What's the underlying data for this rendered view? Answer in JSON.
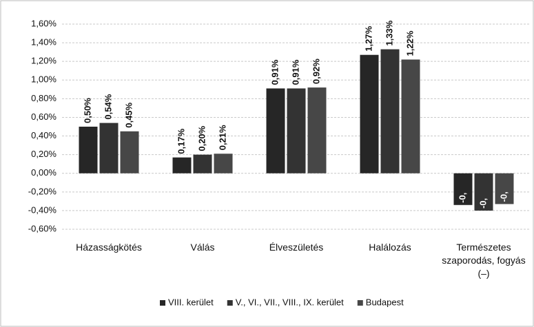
{
  "chart_data": {
    "type": "bar",
    "categories": [
      "Házasságkötés",
      "Válás",
      "Élveszületés",
      "Halálozás",
      "Természetes szaporodás, fogyás (–)"
    ],
    "series": [
      {
        "name": "VIII. kerület",
        "color": "#262626",
        "values": [
          0.5,
          0.17,
          0.91,
          1.27,
          -0.34
        ],
        "value_labels": [
          "0,50%",
          "0,17%",
          "0,91%",
          "1,27%",
          "-0,"
        ]
      },
      {
        "name": "V., VI., VII., VIII., IX. kerület",
        "color": "#333333",
        "values": [
          0.54,
          0.2,
          0.91,
          1.33,
          -0.4
        ],
        "value_labels": [
          "0,54%",
          "0,20%",
          "0,91%",
          "1,33%",
          "-0,"
        ]
      },
      {
        "name": "Budapest",
        "color": "#474747",
        "values": [
          0.45,
          0.21,
          0.92,
          1.22,
          -0.33
        ],
        "value_labels": [
          "0,45%",
          "0,21%",
          "0,92%",
          "1,22%",
          "-0,"
        ]
      }
    ],
    "ylim": [
      -0.6,
      1.6
    ],
    "yticks": [
      {
        "value": -0.6,
        "label": "-0,60%"
      },
      {
        "value": -0.4,
        "label": "-0,40%"
      },
      {
        "value": -0.2,
        "label": "-0,20%"
      },
      {
        "value": 0,
        "label": "0,00%"
      },
      {
        "value": 0.2,
        "label": "0,20%"
      },
      {
        "value": 0.4,
        "label": "0,40%"
      },
      {
        "value": 0.6,
        "label": "0,60%"
      },
      {
        "value": 0.8,
        "label": "0,80%"
      },
      {
        "value": 1.0,
        "label": "1,00%"
      },
      {
        "value": 1.2,
        "label": "1,20%"
      },
      {
        "value": 1.4,
        "label": "1,40%"
      },
      {
        "value": 1.6,
        "label": "1,60%"
      }
    ],
    "grid": true,
    "legend": "bottom"
  }
}
